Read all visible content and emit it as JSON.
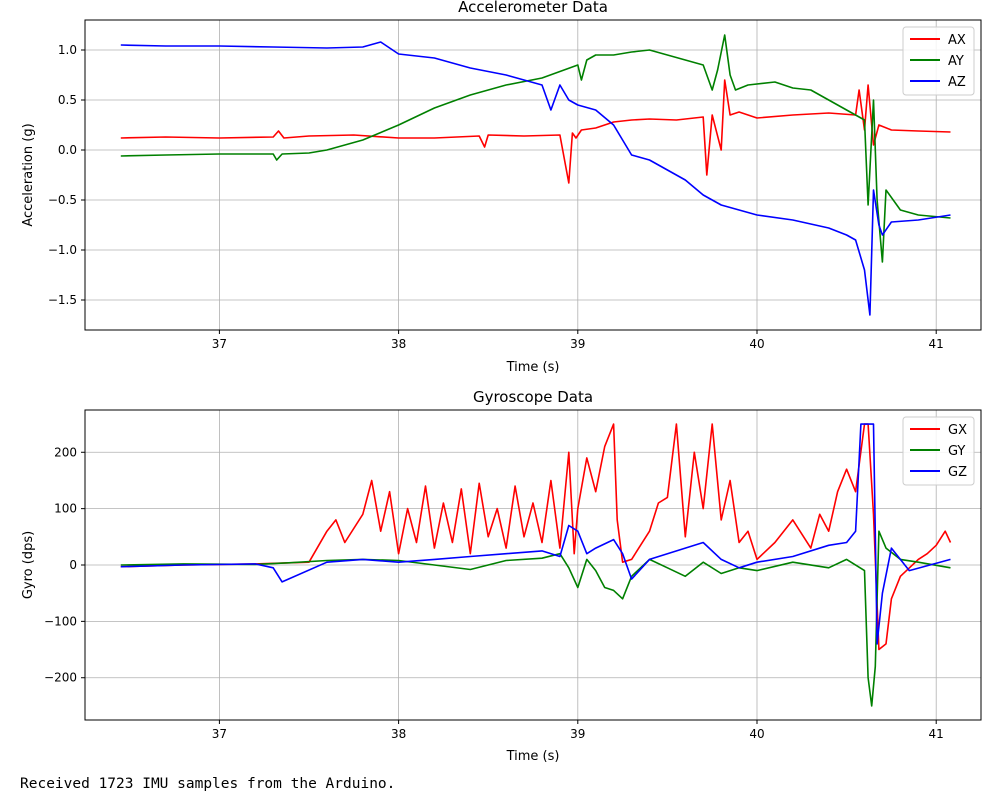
{
  "colors": {
    "red": "#ff0000",
    "green": "#008000",
    "blue": "#0000ff",
    "grid": "#b0b0b0",
    "axis": "#000000"
  },
  "output_text": "Received 1723 IMU samples from the Arduino.",
  "chart_data": [
    {
      "type": "line",
      "title": "Accelerometer Data",
      "xlabel": "Time (s)",
      "ylabel": "Acceleration (g)",
      "xlim": [
        36.25,
        41.25
      ],
      "ylim": [
        -1.8,
        1.3
      ],
      "xticks": [
        37,
        38,
        39,
        40,
        41
      ],
      "xtick_labels": [
        "37",
        "38",
        "39",
        "40",
        "41"
      ],
      "yticks": [
        1.0,
        0.5,
        0.0,
        -0.5,
        -1.0,
        -1.5
      ],
      "ytick_labels": [
        "1.0",
        "0.5",
        "0.0",
        "−0.5",
        "−1.0",
        "−1.5"
      ],
      "grid": true,
      "legend": "upper right",
      "series": [
        {
          "name": "AX",
          "color": "#ff0000",
          "x": [
            36.45,
            36.7,
            37.0,
            37.3,
            37.33,
            37.36,
            37.5,
            37.75,
            38.0,
            38.2,
            38.45,
            38.48,
            38.5,
            38.7,
            38.9,
            38.95,
            38.97,
            38.99,
            39.02,
            39.1,
            39.2,
            39.3,
            39.4,
            39.55,
            39.7,
            39.72,
            39.75,
            39.8,
            39.82,
            39.85,
            39.9,
            40.0,
            40.2,
            40.4,
            40.55,
            40.57,
            40.6,
            40.62,
            40.65,
            40.68,
            40.75,
            40.9,
            41.08
          ],
          "y": [
            0.12,
            0.13,
            0.12,
            0.13,
            0.19,
            0.12,
            0.14,
            0.15,
            0.12,
            0.12,
            0.14,
            0.03,
            0.15,
            0.14,
            0.15,
            -0.33,
            0.17,
            0.12,
            0.2,
            0.22,
            0.28,
            0.3,
            0.31,
            0.3,
            0.33,
            -0.25,
            0.35,
            0.0,
            0.7,
            0.35,
            0.38,
            0.32,
            0.35,
            0.37,
            0.35,
            0.6,
            0.2,
            0.65,
            0.05,
            0.25,
            0.2,
            0.19,
            0.18
          ]
        },
        {
          "name": "AY",
          "color": "#008000",
          "x": [
            36.45,
            36.7,
            37.0,
            37.3,
            37.32,
            37.35,
            37.5,
            37.6,
            37.8,
            38.0,
            38.2,
            38.4,
            38.6,
            38.8,
            39.0,
            39.02,
            39.05,
            39.1,
            39.2,
            39.3,
            39.4,
            39.5,
            39.6,
            39.7,
            39.75,
            39.78,
            39.82,
            39.85,
            39.88,
            39.95,
            40.1,
            40.2,
            40.3,
            40.4,
            40.5,
            40.6,
            40.62,
            40.65,
            40.67,
            40.7,
            40.72,
            40.8,
            40.9,
            41.08
          ],
          "y": [
            -0.06,
            -0.05,
            -0.04,
            -0.04,
            -0.1,
            -0.04,
            -0.03,
            0.0,
            0.1,
            0.25,
            0.42,
            0.55,
            0.65,
            0.72,
            0.85,
            0.7,
            0.9,
            0.95,
            0.95,
            0.98,
            1.0,
            0.95,
            0.9,
            0.85,
            0.6,
            0.8,
            1.15,
            0.75,
            0.6,
            0.65,
            0.68,
            0.62,
            0.6,
            0.5,
            0.4,
            0.3,
            -0.55,
            0.5,
            -0.5,
            -1.12,
            -0.4,
            -0.6,
            -0.65,
            -0.68
          ]
        },
        {
          "name": "AZ",
          "color": "#0000ff",
          "x": [
            36.45,
            36.7,
            37.0,
            37.3,
            37.6,
            37.8,
            37.9,
            38.0,
            38.2,
            38.4,
            38.6,
            38.8,
            38.85,
            38.9,
            38.95,
            39.0,
            39.1,
            39.2,
            39.25,
            39.3,
            39.4,
            39.5,
            39.6,
            39.7,
            39.8,
            40.0,
            40.2,
            40.4,
            40.5,
            40.55,
            40.6,
            40.63,
            40.65,
            40.68,
            40.7,
            40.75,
            40.9,
            41.08
          ],
          "y": [
            1.05,
            1.04,
            1.04,
            1.03,
            1.02,
            1.03,
            1.08,
            0.96,
            0.92,
            0.82,
            0.75,
            0.65,
            0.4,
            0.65,
            0.5,
            0.45,
            0.4,
            0.25,
            0.1,
            -0.05,
            -0.1,
            -0.2,
            -0.3,
            -0.45,
            -0.55,
            -0.65,
            -0.7,
            -0.78,
            -0.85,
            -0.9,
            -1.2,
            -1.65,
            -0.4,
            -0.75,
            -0.85,
            -0.72,
            -0.7,
            -0.65
          ]
        }
      ]
    },
    {
      "type": "line",
      "title": "Gyroscope Data",
      "xlabel": "Time (s)",
      "ylabel": "Gyro (dps)",
      "xlim": [
        36.25,
        41.25
      ],
      "ylim": [
        -275,
        275
      ],
      "xticks": [
        37,
        38,
        39,
        40,
        41
      ],
      "xtick_labels": [
        "37",
        "38",
        "39",
        "40",
        "41"
      ],
      "yticks": [
        200,
        100,
        0,
        -100,
        -200
      ],
      "ytick_labels": [
        "200",
        "100",
        "0",
        "−100",
        "−200"
      ],
      "grid": true,
      "legend": "upper right",
      "series": [
        {
          "name": "GX",
          "color": "#ff0000",
          "x": [
            36.45,
            36.8,
            37.2,
            37.5,
            37.6,
            37.65,
            37.7,
            37.8,
            37.85,
            37.9,
            37.95,
            38.0,
            38.05,
            38.1,
            38.15,
            38.2,
            38.25,
            38.3,
            38.35,
            38.4,
            38.45,
            38.5,
            38.55,
            38.6,
            38.65,
            38.7,
            38.75,
            38.8,
            38.85,
            38.9,
            38.95,
            38.98,
            39.0,
            39.05,
            39.1,
            39.15,
            39.2,
            39.22,
            39.25,
            39.3,
            39.4,
            39.45,
            39.5,
            39.55,
            39.6,
            39.65,
            39.7,
            39.75,
            39.8,
            39.85,
            39.9,
            39.95,
            40.0,
            40.1,
            40.2,
            40.3,
            40.35,
            40.4,
            40.45,
            40.5,
            40.55,
            40.6,
            40.62,
            40.65,
            40.68,
            40.72,
            40.75,
            40.8,
            40.9,
            40.95,
            41.0,
            41.05,
            41.08
          ],
          "y": [
            -3,
            0,
            2,
            5,
            60,
            80,
            40,
            90,
            150,
            60,
            130,
            20,
            100,
            40,
            140,
            30,
            110,
            40,
            135,
            20,
            145,
            50,
            100,
            30,
            140,
            50,
            110,
            40,
            150,
            30,
            200,
            20,
            100,
            190,
            130,
            210,
            250,
            80,
            5,
            10,
            60,
            110,
            120,
            250,
            50,
            200,
            100,
            250,
            80,
            150,
            40,
            60,
            10,
            40,
            80,
            30,
            90,
            60,
            130,
            170,
            130,
            250,
            250,
            90,
            -150,
            -140,
            -60,
            -20,
            10,
            20,
            35,
            60,
            40
          ]
        },
        {
          "name": "GY",
          "color": "#008000",
          "x": [
            36.45,
            36.8,
            37.2,
            37.4,
            37.6,
            37.8,
            38.0,
            38.2,
            38.4,
            38.6,
            38.8,
            38.9,
            38.95,
            39.0,
            39.05,
            39.1,
            39.15,
            39.2,
            39.25,
            39.3,
            39.4,
            39.5,
            39.6,
            39.7,
            39.8,
            39.9,
            40.0,
            40.2,
            40.4,
            40.5,
            40.6,
            40.62,
            40.64,
            40.66,
            40.68,
            40.72,
            40.8,
            40.9,
            41.08
          ],
          "y": [
            0,
            2,
            1,
            4,
            8,
            10,
            8,
            0,
            -8,
            8,
            12,
            20,
            -5,
            -40,
            10,
            -10,
            -40,
            -45,
            -60,
            -20,
            10,
            -5,
            -20,
            5,
            -15,
            -5,
            -10,
            5,
            -5,
            10,
            -10,
            -200,
            -250,
            -180,
            60,
            30,
            10,
            5,
            -5
          ]
        },
        {
          "name": "GZ",
          "color": "#0000ff",
          "x": [
            36.45,
            36.8,
            37.2,
            37.3,
            37.35,
            37.6,
            37.8,
            38.0,
            38.2,
            38.4,
            38.6,
            38.8,
            38.9,
            38.95,
            39.0,
            39.05,
            39.1,
            39.2,
            39.25,
            39.3,
            39.4,
            39.5,
            39.6,
            39.7,
            39.8,
            39.9,
            40.0,
            40.2,
            40.4,
            40.5,
            40.55,
            40.58,
            40.62,
            40.65,
            40.67,
            40.7,
            40.75,
            40.85,
            41.08
          ],
          "y": [
            -3,
            0,
            2,
            -5,
            -30,
            5,
            10,
            5,
            10,
            15,
            20,
            25,
            15,
            70,
            60,
            20,
            30,
            45,
            20,
            -25,
            10,
            20,
            30,
            40,
            10,
            -5,
            5,
            15,
            35,
            40,
            60,
            250,
            250,
            250,
            -140,
            -50,
            30,
            -10,
            10
          ]
        }
      ]
    }
  ]
}
